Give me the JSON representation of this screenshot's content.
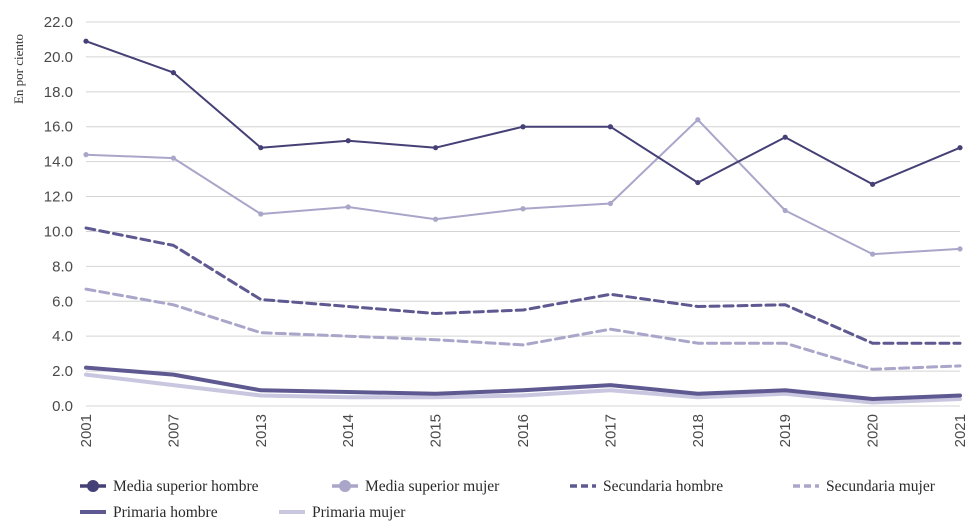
{
  "chart_data": {
    "type": "line",
    "title": "",
    "xlabel": "",
    "ylabel": "En por ciento",
    "ylim": [
      0,
      22
    ],
    "yticks": [
      "0.0",
      "2.0",
      "4.0",
      "6.0",
      "8.0",
      "10.0",
      "12.0",
      "14.0",
      "16.0",
      "18.0",
      "20.0",
      "22.0"
    ],
    "categories": [
      "2001",
      "2007",
      "2013",
      "2014",
      "2015",
      "2016",
      "2017",
      "2018",
      "2019",
      "2020",
      "2021"
    ],
    "grid": "horizontal",
    "legend_position": "bottom",
    "series": [
      {
        "name": "Media superior hombre",
        "color": "#454075",
        "style": "solid-markers",
        "values": [
          20.9,
          19.1,
          14.8,
          15.2,
          14.8,
          16.0,
          16.0,
          12.8,
          15.4,
          12.7,
          14.8
        ]
      },
      {
        "name": "Media superior mujer",
        "color": "#a9a6c9",
        "style": "solid-markers",
        "values": [
          14.4,
          14.2,
          11.0,
          11.4,
          10.7,
          11.3,
          11.6,
          16.4,
          11.2,
          8.7,
          9.0
        ]
      },
      {
        "name": "Secundaria hombre",
        "color": "#5e5a91",
        "style": "dashed",
        "values": [
          10.2,
          9.2,
          6.1,
          5.7,
          5.3,
          5.5,
          6.4,
          5.7,
          5.8,
          3.6,
          3.6
        ]
      },
      {
        "name": "Secundaria mujer",
        "color": "#a9a6c9",
        "style": "dashed",
        "values": [
          6.7,
          5.8,
          4.2,
          4.0,
          3.8,
          3.5,
          4.4,
          3.6,
          3.6,
          2.1,
          2.3
        ]
      },
      {
        "name": "Primaria hombre",
        "color": "#5e5a91",
        "style": "solid",
        "values": [
          2.2,
          1.8,
          0.9,
          0.8,
          0.7,
          0.9,
          1.2,
          0.7,
          0.9,
          0.4,
          0.6
        ]
      },
      {
        "name": "Primaria mujer",
        "color": "#c9c6e0",
        "style": "solid",
        "values": [
          1.8,
          1.2,
          0.6,
          0.5,
          0.5,
          0.6,
          0.9,
          0.5,
          0.7,
          0.2,
          0.4
        ]
      }
    ]
  }
}
